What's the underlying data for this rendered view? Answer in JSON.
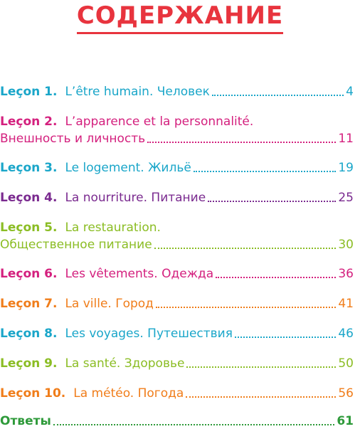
{
  "title": "СОДЕРЖАНИЕ",
  "colors": {
    "title": "#e8343e",
    "lesson1": "#1aa6c9",
    "lesson2": "#d4207e",
    "lesson3": "#1aa6c9",
    "lesson4": "#7a2a8f",
    "lesson5": "#8bbd24",
    "lesson6": "#d4207e",
    "lesson7": "#f07d1a",
    "lesson8": "#1aa6c9",
    "lesson9": "#8bbd24",
    "lesson10": "#f07d1a",
    "answers": "#2e9a3a"
  },
  "entries": [
    {
      "lesson": "Leçon 1.",
      "title": "L’être humain. Человек",
      "page": "4"
    },
    {
      "lesson": "Leçon 2.",
      "title": "L’apparence et la personnalité.",
      "title2": "Внешность и личность",
      "page": "11"
    },
    {
      "lesson": "Leçon 3.",
      "title": "Le logement. Жильё",
      "page": "19"
    },
    {
      "lesson": "Leçon 4.",
      "title": "La nourriture. Питание",
      "page": "25"
    },
    {
      "lesson": "Leçon 5.",
      "title": "La restauration.",
      "title2": "Общественное питание",
      "page": "30"
    },
    {
      "lesson": "Leçon 6.",
      "title": "Les vêtements. Одежда",
      "page": "36"
    },
    {
      "lesson": "Leçon 7.",
      "title": "La ville. Город",
      "page": "41"
    },
    {
      "lesson": "Leçon 8.",
      "title": "Les voyages. Путешествия",
      "page": "46"
    },
    {
      "lesson": "Leçon 9.",
      "title": "La santé. Здоровье",
      "page": "50"
    },
    {
      "lesson": "Leçon 10.",
      "title": "La météo. Погода",
      "page": "56"
    }
  ],
  "answers": {
    "label": "Ответы",
    "page": "61"
  }
}
